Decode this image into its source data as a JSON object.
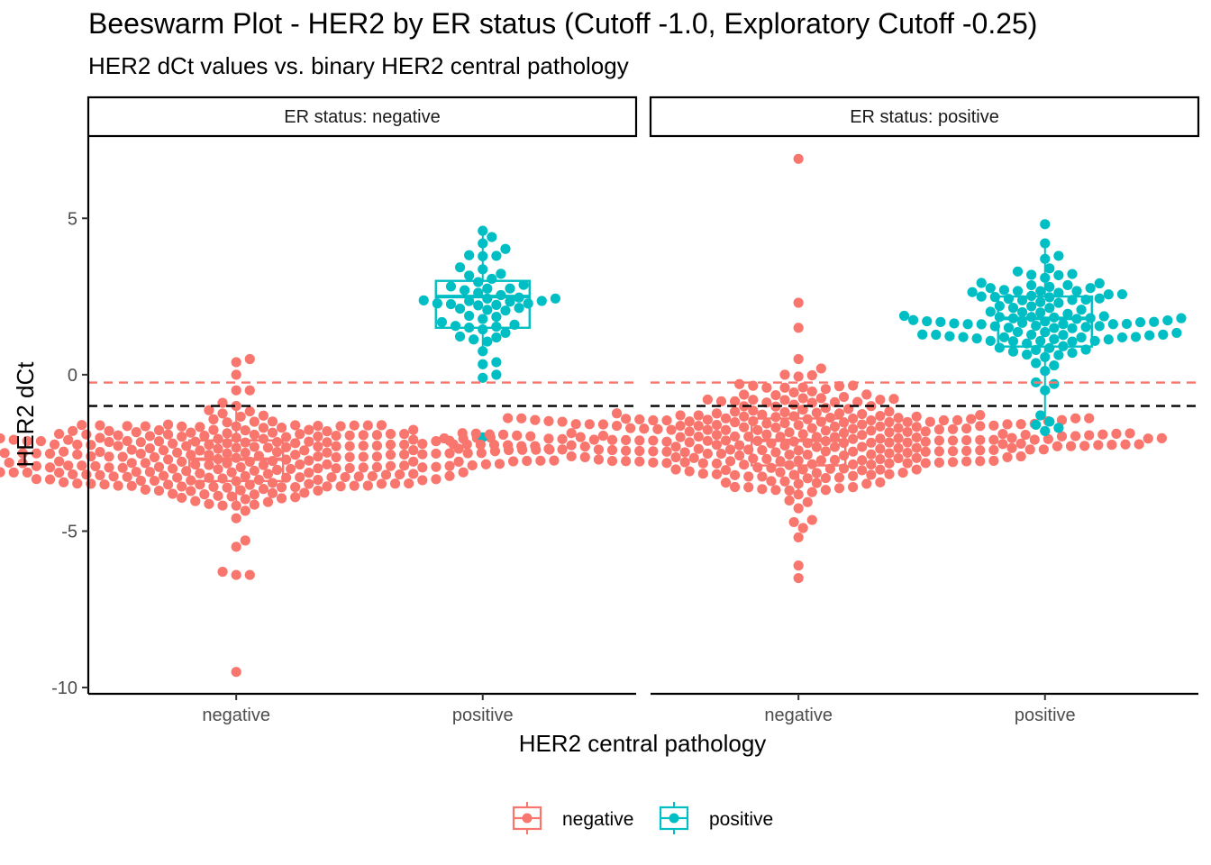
{
  "chart_data": {
    "type": "beeswarm",
    "title": "Beeswarm Plot - HER2 by ER status (Cutoff -1.0, Exploratory Cutoff -0.25)",
    "subtitle": "HER2 dCt values vs. binary HER2 central pathology",
    "xlabel": "HER2 central pathology",
    "ylabel": "HER2 dCt",
    "categories": [
      "negative",
      "positive"
    ],
    "ylim": [
      -10.2,
      7.6
    ],
    "yticks": [
      5,
      0,
      -5,
      -10
    ],
    "ytick_labels": [
      "5",
      "0",
      "-5",
      "-10"
    ],
    "cutoffs": [
      {
        "value": -1.0,
        "color": "#000000",
        "dash": "dashed"
      },
      {
        "value": -0.25,
        "color": "#F8766D",
        "dash": "dashed"
      }
    ],
    "colors": {
      "negative": "#F8766D",
      "positive": "#00BFC4"
    },
    "legend": {
      "position": "bottom",
      "items": [
        "negative",
        "positive"
      ]
    },
    "facets": [
      {
        "label": "ER status: negative",
        "boxes": [
          {
            "category": "negative",
            "q1": -3.4,
            "median": -2.7,
            "q3": -2.1,
            "lower": -4.3,
            "upper": -1.1
          },
          {
            "category": "positive",
            "q1": 1.5,
            "median": 2.5,
            "q3": 3.0,
            "lower": 0.6,
            "upper": 4.6
          }
        ],
        "points": [
          {
            "category": "negative",
            "n": 300,
            "mean": -2.7,
            "sd": 0.72,
            "extra": [
              0.5,
              0.4,
              0.0,
              -0.5,
              -0.5,
              -1.0,
              -5.3,
              -5.5,
              -6.3,
              -6.4,
              -6.4,
              -9.5
            ]
          },
          {
            "category": "positive",
            "n": 48,
            "mean": 2.4,
            "sd": 0.95,
            "extra": [
              4.6,
              4.4,
              4.2,
              3.8,
              0.4,
              0.0,
              -0.1,
              -2.0
            ]
          }
        ]
      },
      {
        "label": "ER status: positive",
        "boxes": [
          {
            "category": "negative",
            "q1": -2.9,
            "median": -2.1,
            "q3": -1.4,
            "lower": -3.9,
            "upper": -0.9
          },
          {
            "category": "positive",
            "q1": 0.9,
            "median": 1.8,
            "q3": 2.5,
            "lower": -1.5,
            "upper": 4.2
          }
        ],
        "points": [
          {
            "category": "negative",
            "n": 340,
            "mean": -2.1,
            "sd": 0.75,
            "extra": [
              6.9,
              2.3,
              1.5,
              0.5,
              0.2,
              0.0,
              -0.3,
              -4.9,
              -5.2,
              -6.1,
              -6.5
            ]
          },
          {
            "category": "positive",
            "n": 110,
            "mean": 1.7,
            "sd": 0.95,
            "extra": [
              4.2,
              3.8,
              3.4,
              3.3,
              -0.5,
              -1.3,
              -1.5,
              -1.6,
              -1.7,
              -1.8
            ]
          }
        ]
      }
    ]
  }
}
